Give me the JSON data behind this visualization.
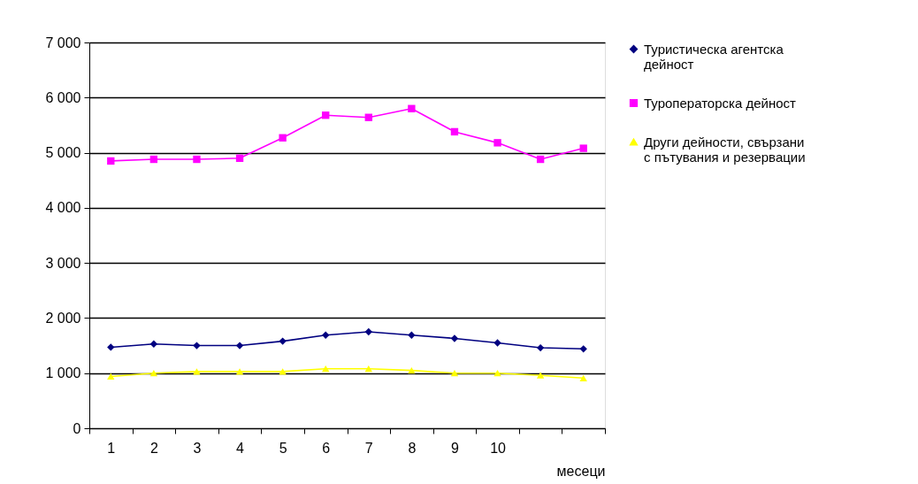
{
  "chart_data": {
    "type": "line",
    "xlabel": "месеци",
    "categories": [
      "1",
      "2",
      "3",
      "4",
      "5",
      "6",
      "7",
      "8",
      "9",
      "10",
      null,
      null
    ],
    "series": [
      {
        "name": "Туристическа агентска дейност",
        "color": "#000080",
        "marker": "diamond",
        "values": [
          1470,
          1530,
          1500,
          1500,
          1580,
          1690,
          1750,
          1690,
          1630,
          1550,
          1460,
          1440
        ]
      },
      {
        "name": "Туроператорска дейност",
        "color": "#ff00ff",
        "marker": "square",
        "values": [
          4850,
          4880,
          4880,
          4900,
          5270,
          5680,
          5640,
          5800,
          5380,
          5180,
          4880,
          5080
        ]
      },
      {
        "name": "Други дейности, свързани с пътувания и резервации",
        "color": "#ffff00",
        "marker": "triangle",
        "values": [
          940,
          1000,
          1030,
          1030,
          1030,
          1080,
          1080,
          1050,
          1000,
          1000,
          960,
          910
        ]
      }
    ],
    "ylim": [
      0,
      7000
    ],
    "yticks": [
      {
        "value": 0,
        "label": "0"
      },
      {
        "value": 1000,
        "label": "1 000"
      },
      {
        "value": 2000,
        "label": "2 000"
      },
      {
        "value": 3000,
        "label": "3 000"
      },
      {
        "value": 4000,
        "label": "4 000"
      },
      {
        "value": 5000,
        "label": "5 000"
      },
      {
        "value": 6000,
        "label": "6 000"
      },
      {
        "value": 7000,
        "label": "7 000"
      }
    ],
    "grid": "y",
    "legend": "right",
    "line_style": "solid"
  }
}
